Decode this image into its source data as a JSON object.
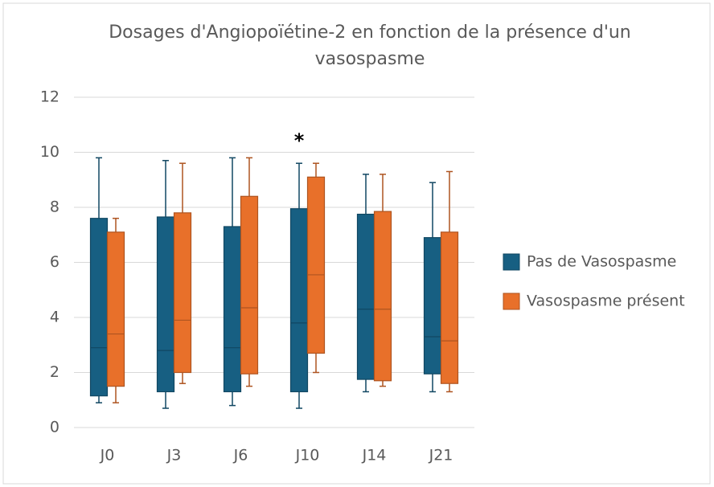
{
  "chart_data": {
    "type": "box",
    "title": "Dosages d'Angiopoïétine-2 en fonction de la présence d'un vasospasme",
    "categories": [
      "J0",
      "J3",
      "J6",
      "J10",
      "J14",
      "J21"
    ],
    "series": [
      {
        "name": "Pas de Vasospasme",
        "color": "#175f82",
        "values": [
          {
            "min": 0.9,
            "q1": 1.15,
            "median": 2.9,
            "q3": 7.6,
            "max": 9.8
          },
          {
            "min": 0.7,
            "q1": 1.3,
            "median": 2.8,
            "q3": 7.65,
            "max": 9.7
          },
          {
            "min": 0.8,
            "q1": 1.3,
            "median": 2.9,
            "q3": 7.3,
            "max": 9.8
          },
          {
            "min": 0.7,
            "q1": 1.3,
            "median": 3.8,
            "q3": 7.95,
            "max": 9.6
          },
          {
            "min": 1.3,
            "q1": 1.75,
            "median": 4.3,
            "q3": 7.75,
            "max": 9.2
          },
          {
            "min": 1.3,
            "q1": 1.95,
            "median": 3.3,
            "q3": 6.9,
            "max": 8.9
          }
        ]
      },
      {
        "name": "Vasospasme présent",
        "color": "#e8702a",
        "values": [
          {
            "min": 0.9,
            "q1": 1.5,
            "median": 3.4,
            "q3": 7.1,
            "max": 7.6
          },
          {
            "min": 1.6,
            "q1": 2.0,
            "median": 3.9,
            "q3": 7.8,
            "max": 9.6
          },
          {
            "min": 1.5,
            "q1": 1.95,
            "median": 4.35,
            "q3": 8.4,
            "max": 9.8
          },
          {
            "min": 2.0,
            "q1": 2.7,
            "median": 5.55,
            "q3": 9.1,
            "max": 9.6
          },
          {
            "min": 1.5,
            "q1": 1.7,
            "median": 4.3,
            "q3": 7.85,
            "max": 9.2
          },
          {
            "min": 1.3,
            "q1": 1.6,
            "median": 3.15,
            "q3": 7.1,
            "max": 9.3
          }
        ]
      }
    ],
    "annotations": [
      {
        "text": "*",
        "category": "J10"
      }
    ],
    "ylim": [
      0,
      12
    ],
    "yticks": [
      0,
      2,
      4,
      6,
      8,
      10,
      12
    ],
    "grid": true,
    "legend": "right"
  }
}
